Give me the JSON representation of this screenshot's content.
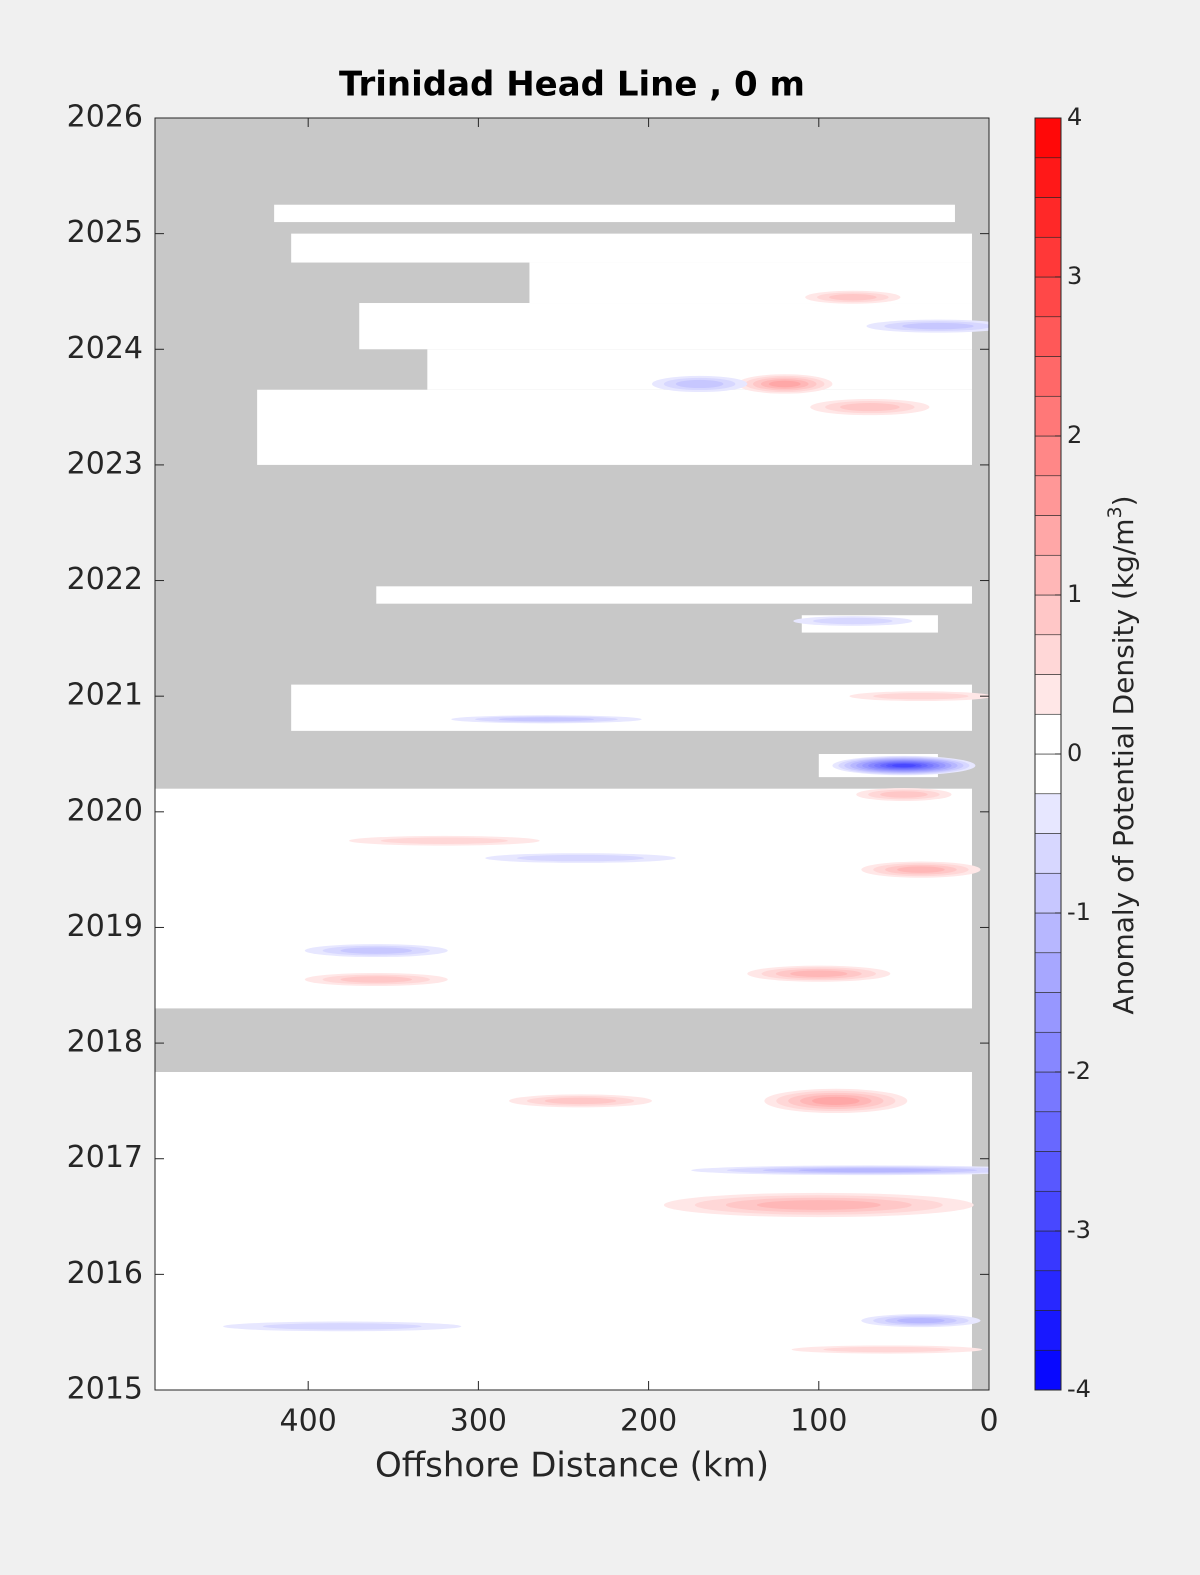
{
  "chart_data": {
    "type": "contour",
    "title": "Trinidad Head Line , 0 m",
    "x_label": "Offshore Distance (km)",
    "colorbar_label": "Anomaly of Potential Density (kg/m",
    "colorbar_label_sup": "3",
    "colorbar_label_end": ")",
    "xlim": [
      490,
      0
    ],
    "xticks": [
      400,
      300,
      200,
      100,
      0
    ],
    "ylim": [
      2015,
      2026
    ],
    "yticks": [
      2015,
      2016,
      2017,
      2018,
      2019,
      2020,
      2021,
      2022,
      2023,
      2024,
      2025,
      2026
    ],
    "clim": [
      -4,
      4
    ],
    "cticks": [
      -4,
      -3,
      -2,
      -1,
      0,
      1,
      2,
      3,
      4
    ],
    "level_step": 0.25,
    "colors": {
      "low": "#0000ff",
      "zero": "#ffffff",
      "high": "#ff0000",
      "missing": "#c8c8c8"
    },
    "coverage": {
      "y_start": [
        2025.1,
        2024.75,
        2024.4,
        2024.0,
        2023.65,
        2023.0,
        2021.8,
        2021.55,
        2020.7,
        2020.3,
        2018.3,
        2015.0
      ],
      "y_end": [
        2025.25,
        2025.0,
        2024.75,
        2024.4,
        2024.0,
        2023.65,
        2021.95,
        2021.7,
        2021.1,
        2020.5,
        2020.2,
        2017.75
      ],
      "x_far": [
        420,
        410,
        270,
        370,
        330,
        430,
        360,
        110,
        410,
        100,
        490,
        490
      ],
      "x_near": [
        20,
        10,
        10,
        10,
        10,
        10,
        10,
        30,
        10,
        30,
        10,
        10
      ]
    },
    "features": {
      "x": [
        50,
        90,
        100,
        70,
        40,
        40,
        100,
        360,
        360,
        240,
        120,
        70,
        170,
        80,
        30,
        260,
        240,
        320,
        50,
        40,
        60,
        380,
        80
      ],
      "y": [
        2020.4,
        2017.5,
        2016.6,
        2016.9,
        2015.6,
        2019.5,
        2018.6,
        2018.8,
        2018.55,
        2019.6,
        2023.7,
        2023.5,
        2023.7,
        2024.45,
        2024.2,
        2020.8,
        2017.5,
        2019.75,
        2020.15,
        2021.0,
        2015.35,
        2015.55,
        2021.65
      ],
      "values": [
        -3.0,
        1.5,
        1.25,
        -1.25,
        -1.25,
        1.25,
        1.25,
        -1.0,
        1.0,
        -0.75,
        1.5,
        1.0,
        -1.0,
        1.0,
        -1.0,
        -1.0,
        1.0,
        0.75,
        1.0,
        0.75,
        0.75,
        -0.75,
        -0.75
      ],
      "x_extent": [
        60,
        60,
        130,
        150,
        50,
        50,
        60,
        60,
        60,
        80,
        40,
        50,
        40,
        40,
        60,
        80,
        60,
        80,
        40,
        60,
        80,
        100,
        50
      ],
      "y_extent": [
        0.12,
        0.15,
        0.15,
        0.06,
        0.08,
        0.1,
        0.1,
        0.08,
        0.08,
        0.06,
        0.12,
        0.1,
        0.1,
        0.08,
        0.08,
        0.05,
        0.08,
        0.06,
        0.08,
        0.06,
        0.05,
        0.06,
        0.06
      ]
    }
  }
}
